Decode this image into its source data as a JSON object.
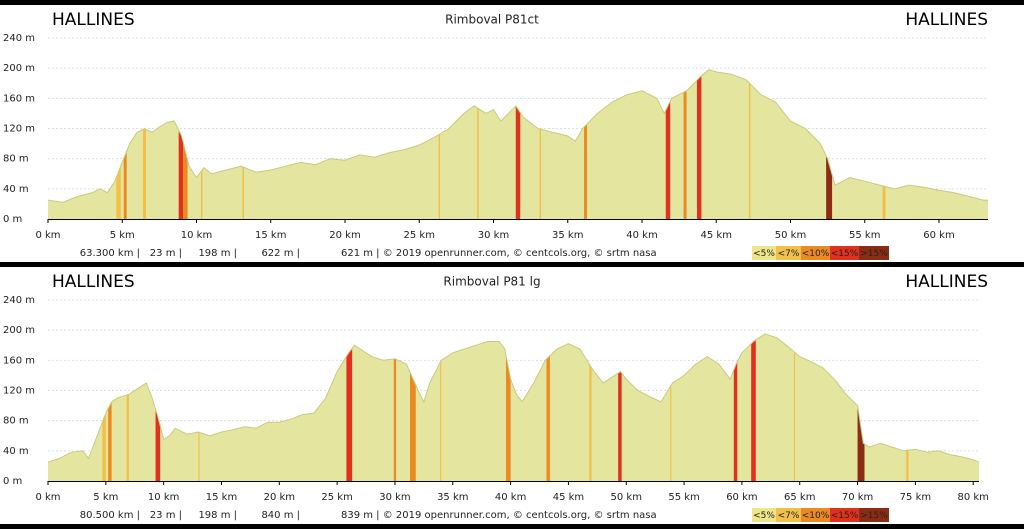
{
  "chart_data": [
    {
      "type": "area",
      "title": "Rimboval P81ct",
      "start_label": "HALLINES",
      "end_label": "HALLINES",
      "x": [
        0,
        1,
        2,
        3,
        3.5,
        4,
        4.5,
        5,
        5.5,
        6,
        6.5,
        7,
        7.5,
        8,
        8.5,
        9,
        9.5,
        10,
        10.5,
        11,
        12,
        13,
        14,
        15,
        16,
        17,
        18,
        19,
        20,
        21,
        22,
        23,
        24,
        25,
        26,
        27,
        28,
        28.7,
        29.5,
        30,
        30.5,
        31.5,
        32,
        33,
        34,
        35,
        35.5,
        36,
        36.5,
        37,
        38,
        39,
        40,
        41,
        41.5,
        42,
        43,
        43.5,
        44,
        44.5,
        45,
        46,
        47,
        48,
        49,
        50,
        51,
        52,
        52.5,
        53,
        54,
        55,
        56,
        57,
        58,
        59,
        60,
        61,
        62,
        63,
        63.3
      ],
      "values": [
        25,
        22,
        30,
        35,
        40,
        35,
        50,
        75,
        100,
        115,
        120,
        115,
        122,
        128,
        130,
        110,
        70,
        55,
        68,
        60,
        65,
        70,
        62,
        65,
        70,
        75,
        72,
        80,
        78,
        85,
        82,
        88,
        92,
        98,
        108,
        120,
        140,
        150,
        140,
        145,
        130,
        150,
        135,
        120,
        115,
        110,
        103,
        120,
        130,
        140,
        155,
        165,
        170,
        160,
        140,
        160,
        170,
        180,
        190,
        198,
        195,
        192,
        185,
        165,
        155,
        130,
        120,
        100,
        80,
        45,
        55,
        50,
        45,
        40,
        45,
        42,
        38,
        35,
        30,
        25,
        25
      ],
      "color": "#e4e6a0",
      "grade_bands": [
        {
          "x": [
            4.6,
            4.9
          ],
          "level": 1
        },
        {
          "x": [
            5.1,
            5.3
          ],
          "level": 2
        },
        {
          "x": [
            6.4,
            6.6
          ],
          "level": 1
        },
        {
          "x": [
            8.8,
            9.1
          ],
          "level": 3
        },
        {
          "x": [
            9.1,
            9.4
          ],
          "level": 2
        },
        {
          "x": [
            10.3,
            10.4
          ],
          "level": 1
        },
        {
          "x": [
            13.1,
            13.2
          ],
          "level": 1
        },
        {
          "x": [
            26.3,
            26.4
          ],
          "level": 1
        },
        {
          "x": [
            28.9,
            29
          ],
          "level": 1
        },
        {
          "x": [
            31.5,
            31.8
          ],
          "level": 3
        },
        {
          "x": [
            33.1,
            33.2
          ],
          "level": 1
        },
        {
          "x": [
            36.1,
            36.3
          ],
          "level": 2
        },
        {
          "x": [
            41.6,
            41.9
          ],
          "level": 3
        },
        {
          "x": [
            42.8,
            43
          ],
          "level": 2
        },
        {
          "x": [
            43.7,
            44
          ],
          "level": 3
        },
        {
          "x": [
            47.2,
            47.3
          ],
          "level": 1
        },
        {
          "x": [
            52.4,
            52.8
          ],
          "level": 4
        },
        {
          "x": [
            56.2,
            56.4
          ],
          "level": 1
        }
      ],
      "xlim": [
        0,
        63.3
      ],
      "xticks": [
        {
          "value": 0,
          "label": "0 km"
        },
        {
          "value": 5,
          "label": "5 km"
        },
        {
          "value": 10,
          "label": "10 km"
        },
        {
          "value": 15,
          "label": "15 km"
        },
        {
          "value": 20,
          "label": "20 km"
        },
        {
          "value": 25,
          "label": "25 km"
        },
        {
          "value": 30,
          "label": "30 km"
        },
        {
          "value": 35,
          "label": "35 km"
        },
        {
          "value": 40,
          "label": "40 km"
        },
        {
          "value": 45,
          "label": "45 km"
        },
        {
          "value": 50,
          "label": "50 km"
        },
        {
          "value": 55,
          "label": "55 km"
        },
        {
          "value": 60,
          "label": "60 km"
        }
      ],
      "ylim": [
        0,
        240
      ],
      "yticks": [
        {
          "value": 0,
          "label": "0 m"
        },
        {
          "value": 40,
          "label": "40 m"
        },
        {
          "value": 80,
          "label": "80 m"
        },
        {
          "value": 120,
          "label": "120 m"
        },
        {
          "value": 160,
          "label": "160 m"
        },
        {
          "value": 200,
          "label": "200 m"
        },
        {
          "value": 240,
          "label": "240 m"
        }
      ],
      "grid": true,
      "footer": [
        "63.300 km |",
        "23 m |",
        "198 m |",
        "622 m |",
        "621 m | © 2019 openrunner.com, © centcols.org, © srtm nasa"
      ],
      "legend": {
        "labels": [
          "<5%",
          "<7%",
          "<10%",
          "<15%",
          ">15%"
        ],
        "colors": [
          "#eee68a",
          "#f2c048",
          "#ec8a22",
          "#e0301e",
          "#8c2c14"
        ]
      }
    },
    {
      "type": "area",
      "title": "Rimboval P81 lg",
      "start_label": "HALLINES",
      "end_label": "HALLINES",
      "x": [
        0,
        1,
        2,
        3,
        3.5,
        4,
        5,
        5.5,
        6,
        7,
        8,
        8.5,
        9,
        9.5,
        10,
        10.5,
        11,
        12,
        13,
        14,
        15,
        16,
        17,
        18,
        19,
        20,
        21,
        22,
        23,
        24,
        25,
        26,
        26.5,
        27,
        28,
        29,
        30,
        31,
        32,
        32.5,
        33,
        34,
        35,
        36,
        37,
        38,
        39,
        39.5,
        40,
        40.5,
        41,
        42,
        43,
        44,
        45,
        46,
        47,
        48,
        49,
        49.5,
        50,
        51,
        52,
        53,
        54,
        55,
        56,
        57,
        58,
        59,
        59.5,
        60,
        61,
        62,
        63,
        64,
        65,
        66,
        67,
        68,
        69,
        70,
        70.5,
        71,
        72,
        73,
        74,
        75,
        76,
        77,
        78,
        79,
        80,
        80.5
      ],
      "values": [
        25,
        30,
        38,
        40,
        30,
        50,
        90,
        105,
        110,
        115,
        125,
        130,
        110,
        85,
        55,
        60,
        70,
        62,
        65,
        60,
        65,
        68,
        72,
        70,
        78,
        78,
        82,
        88,
        90,
        110,
        145,
        170,
        180,
        175,
        165,
        160,
        162,
        155,
        120,
        105,
        130,
        160,
        170,
        175,
        180,
        185,
        185,
        175,
        135,
        115,
        105,
        130,
        160,
        175,
        182,
        175,
        150,
        130,
        140,
        145,
        135,
        120,
        112,
        105,
        130,
        140,
        155,
        165,
        155,
        135,
        155,
        170,
        185,
        195,
        190,
        178,
        165,
        158,
        150,
        135,
        115,
        100,
        50,
        45,
        50,
        45,
        40,
        42,
        38,
        40,
        35,
        32,
        28,
        25
      ],
      "color": "#e4e6a0",
      "grade_bands": [
        {
          "x": [
            4.7,
            5
          ],
          "level": 1
        },
        {
          "x": [
            5.2,
            5.5
          ],
          "level": 2
        },
        {
          "x": [
            6.8,
            7
          ],
          "level": 1
        },
        {
          "x": [
            9.3,
            9.7
          ],
          "level": 3
        },
        {
          "x": [
            13,
            13.1
          ],
          "level": 1
        },
        {
          "x": [
            25.8,
            26.3
          ],
          "level": 3
        },
        {
          "x": [
            29.9,
            30.1
          ],
          "level": 2
        },
        {
          "x": [
            31.3,
            31.8
          ],
          "level": 2
        },
        {
          "x": [
            33.9,
            34
          ],
          "level": 1
        },
        {
          "x": [
            39.6,
            40
          ],
          "level": 2
        },
        {
          "x": [
            43.1,
            43.4
          ],
          "level": 2
        },
        {
          "x": [
            46.8,
            47
          ],
          "level": 1
        },
        {
          "x": [
            49.3,
            49.6
          ],
          "level": 3
        },
        {
          "x": [
            53.8,
            53.9
          ],
          "level": 1
        },
        {
          "x": [
            59.3,
            59.6
          ],
          "level": 3
        },
        {
          "x": [
            60.8,
            61.2
          ],
          "level": 3
        },
        {
          "x": [
            64.5,
            64.6
          ],
          "level": 1
        },
        {
          "x": [
            70,
            70.6
          ],
          "level": 4
        },
        {
          "x": [
            74.2,
            74.4
          ],
          "level": 1
        }
      ],
      "xlim": [
        0,
        80.5
      ],
      "xticks": [
        {
          "value": 0,
          "label": "0 km"
        },
        {
          "value": 5,
          "label": "5 km"
        },
        {
          "value": 10,
          "label": "10 km"
        },
        {
          "value": 15,
          "label": "15 km"
        },
        {
          "value": 20,
          "label": "20 km"
        },
        {
          "value": 25,
          "label": "25 km"
        },
        {
          "value": 30,
          "label": "30 km"
        },
        {
          "value": 35,
          "label": "35 km"
        },
        {
          "value": 40,
          "label": "40 km"
        },
        {
          "value": 45,
          "label": "45 km"
        },
        {
          "value": 50,
          "label": "50 km"
        },
        {
          "value": 55,
          "label": "55 km"
        },
        {
          "value": 60,
          "label": "60 km"
        },
        {
          "value": 65,
          "label": "65 km"
        },
        {
          "value": 70,
          "label": "70 km"
        },
        {
          "value": 75,
          "label": "75 km"
        },
        {
          "value": 80,
          "label": "80 km"
        }
      ],
      "ylim": [
        0,
        240
      ],
      "yticks": [
        {
          "value": 0,
          "label": "0 m"
        },
        {
          "value": 40,
          "label": "40 m"
        },
        {
          "value": 80,
          "label": "80 m"
        },
        {
          "value": 120,
          "label": "120 m"
        },
        {
          "value": 160,
          "label": "160 m"
        },
        {
          "value": 200,
          "label": "200 m"
        },
        {
          "value": 240,
          "label": "240 m"
        }
      ],
      "grid": true,
      "footer": [
        "80.500 km |",
        "23 m |",
        "198 m |",
        "840 m |",
        "839 m | © 2019 openrunner.com, © centcols.org, © srtm nasa"
      ],
      "legend": {
        "labels": [
          "<5%",
          "<7%",
          "<10%",
          "<15%",
          ">15%"
        ],
        "colors": [
          "#eee68a",
          "#f2c048",
          "#ec8a22",
          "#e0301e",
          "#8c2c14"
        ]
      }
    }
  ]
}
